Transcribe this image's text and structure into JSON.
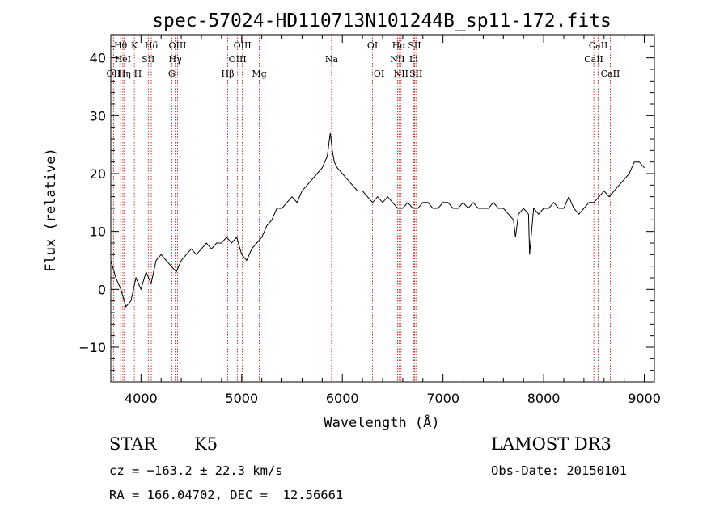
{
  "chart_data": {
    "type": "line",
    "title": "spec-57024-HD110713N101244B_sp11-172.fits",
    "xlabel": "Wavelength (Å)",
    "ylabel": "Flux (relative)",
    "xlim": [
      3700,
      9100
    ],
    "ylim": [
      -16,
      44
    ],
    "x_ticks": [
      "4000",
      "5000",
      "6000",
      "7000",
      "8000",
      "9000"
    ],
    "y_ticks": [
      "−10",
      "0",
      "10",
      "20",
      "30",
      "40"
    ],
    "series": [
      {
        "x": [
          3700,
          3750,
          3800,
          3850,
          3900,
          3950,
          4000,
          4050,
          4100,
          4150,
          4200,
          4250,
          4300,
          4350,
          4400,
          4450,
          4500,
          4550,
          4600,
          4650,
          4700,
          4750,
          4800,
          4850,
          4900,
          4950,
          5000,
          5050,
          5100,
          5150,
          5200,
          5250,
          5300,
          5350,
          5400,
          5450,
          5500,
          5550,
          5600,
          5650,
          5700,
          5750,
          5800,
          5850,
          5880,
          5900,
          5920,
          5950,
          6000,
          6050,
          6100,
          6150,
          6200,
          6250,
          6300,
          6350,
          6400,
          6450,
          6500,
          6550,
          6600,
          6650,
          6700,
          6750,
          6800,
          6850,
          6900,
          6950,
          7000,
          7050,
          7100,
          7150,
          7200,
          7250,
          7300,
          7350,
          7400,
          7450,
          7500,
          7550,
          7600,
          7650,
          7700,
          7720,
          7750,
          7800,
          7850,
          7860,
          7900,
          7950,
          8000,
          8050,
          8100,
          8150,
          8200,
          8250,
          8300,
          8350,
          8400,
          8450,
          8500,
          8550,
          8600,
          8650,
          8700,
          8750,
          8800,
          8850,
          8900,
          8950,
          9000
        ],
        "y": [
          5,
          2,
          0,
          -3,
          -2,
          2,
          0,
          3,
          1,
          5,
          6,
          5,
          4,
          3,
          5,
          6,
          7,
          6,
          7,
          8,
          7,
          8,
          8,
          9,
          8,
          9,
          6,
          5,
          7,
          8,
          9,
          11,
          12,
          14,
          14,
          15,
          16,
          15,
          17,
          18,
          19,
          20,
          21,
          23,
          27,
          24,
          22,
          21,
          20,
          19,
          18,
          17,
          17,
          16,
          15,
          16,
          15,
          16,
          15,
          14,
          14,
          15,
          14,
          14,
          15,
          15,
          14,
          14,
          15,
          15,
          14,
          14,
          15,
          14,
          15,
          14,
          14,
          14,
          15,
          14,
          14,
          13,
          12,
          9,
          13,
          14,
          13,
          6,
          14,
          13,
          14,
          14,
          15,
          14,
          14,
          16,
          14,
          13,
          14,
          15,
          15,
          16,
          17,
          16,
          17,
          18,
          19,
          20,
          22,
          22,
          21
        ]
      }
    ],
    "spectral_lines": [
      {
        "label": "Hθ",
        "x": 3798,
        "row": 1
      },
      {
        "label": "OII",
        "x": 3727,
        "row": 3
      },
      {
        "label": "HeI",
        "x": 3820,
        "row": 2
      },
      {
        "label": "Hη",
        "x": 3835,
        "row": 3
      },
      {
        "label": "K",
        "x": 3934,
        "row": 1
      },
      {
        "label": "SII",
        "x": 4072,
        "row": 2
      },
      {
        "label": "H",
        "x": 3969,
        "row": 3
      },
      {
        "label": "Hδ",
        "x": 4102,
        "row": 1
      },
      {
        "label": "OIII",
        "x": 4363,
        "row": 1
      },
      {
        "label": "Hγ",
        "x": 4340,
        "row": 2
      },
      {
        "label": "G",
        "x": 4305,
        "row": 3
      },
      {
        "label": "Hβ",
        "x": 4861,
        "row": 3
      },
      {
        "label": "OIII",
        "x": 5007,
        "row": 1
      },
      {
        "label": "OIII",
        "x": 4959,
        "row": 2
      },
      {
        "label": "Mg",
        "x": 5175,
        "row": 3
      },
      {
        "label": "Na",
        "x": 5893,
        "row": 2
      },
      {
        "label": "OI",
        "x": 6300,
        "row": 1
      },
      {
        "label": "OI",
        "x": 6364,
        "row": 3
      },
      {
        "label": "Hα",
        "x": 6563,
        "row": 1
      },
      {
        "label": "SII",
        "x": 6717,
        "row": 1
      },
      {
        "label": "NII",
        "x": 6548,
        "row": 2
      },
      {
        "label": "Li",
        "x": 6708,
        "row": 2
      },
      {
        "label": "NII",
        "x": 6583,
        "row": 3
      },
      {
        "label": "SII",
        "x": 6731,
        "row": 3
      },
      {
        "label": "CaII",
        "x": 8542,
        "row": 1
      },
      {
        "label": "CaII",
        "x": 8498,
        "row": 2
      },
      {
        "label": "CaII",
        "x": 8662,
        "row": 3
      }
    ]
  },
  "info": {
    "class": "STAR",
    "subclass": "K5",
    "survey": "LAMOST DR3",
    "cz": "cz = −163.2 ± 22.3 km/s",
    "obs_date": "Obs-Date: 20150101",
    "coords": "RA = 166.04702, DEC =  12.56661"
  }
}
